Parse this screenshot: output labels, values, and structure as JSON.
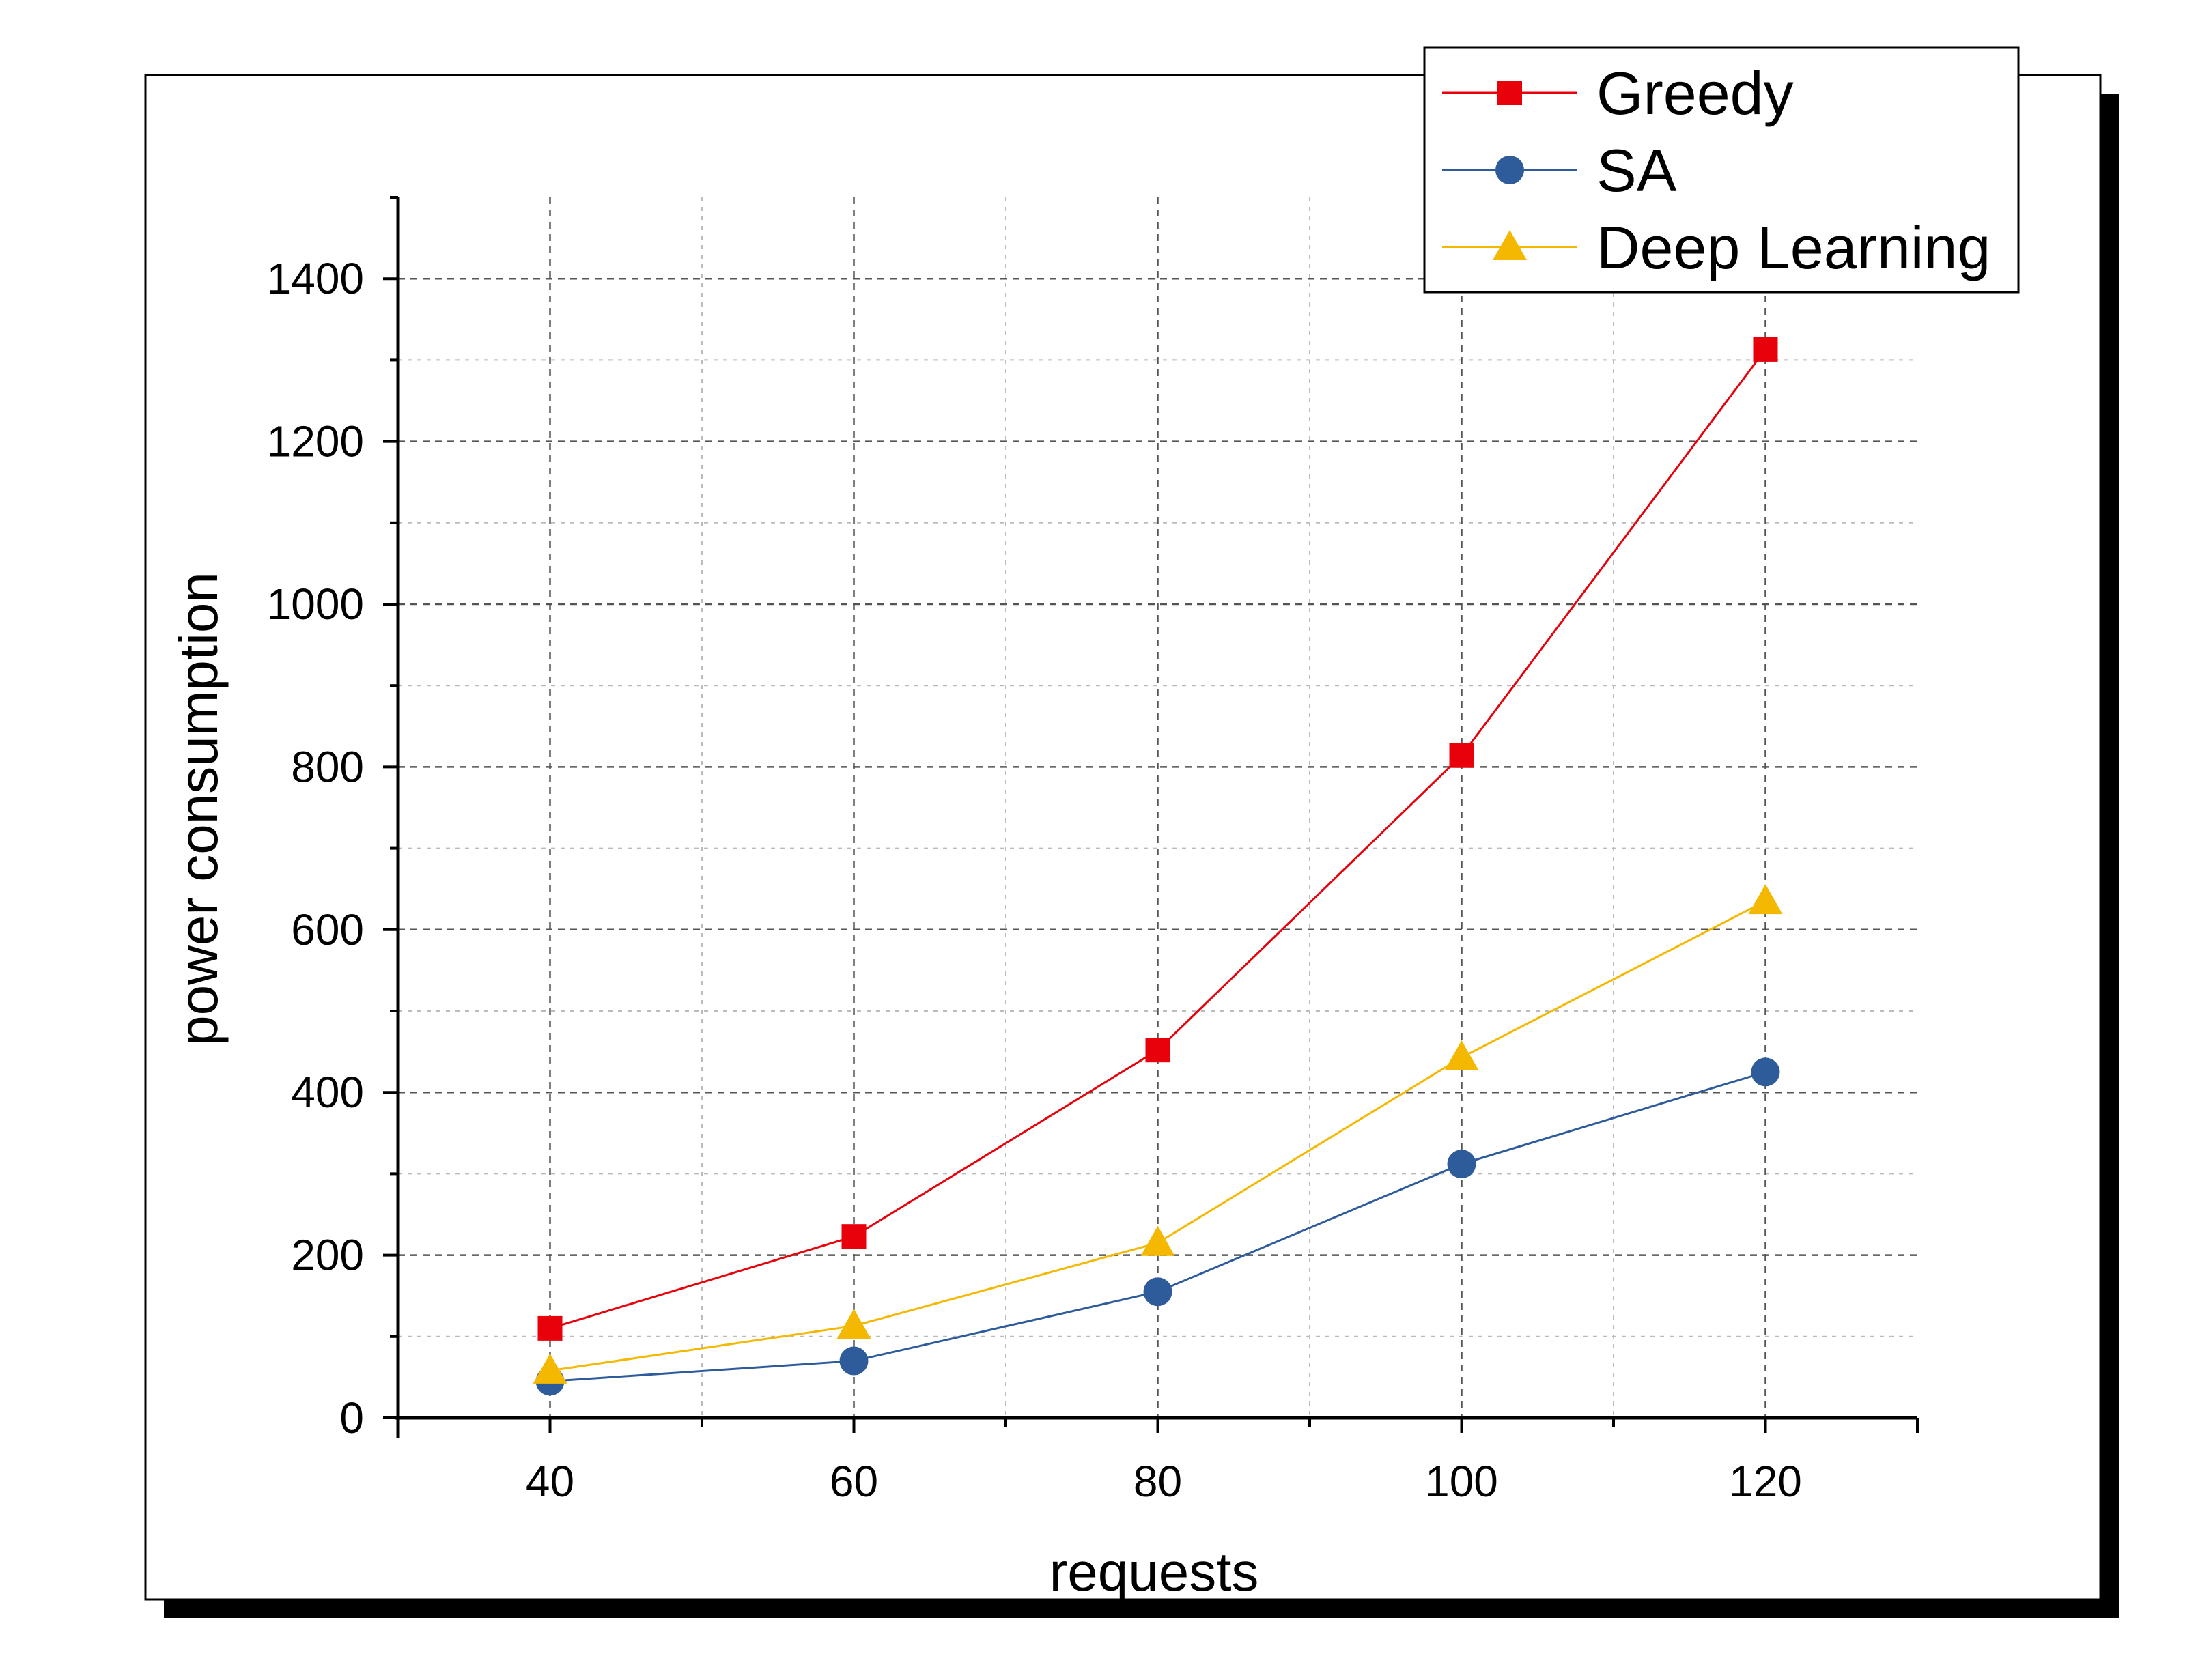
{
  "chart_data": {
    "type": "line",
    "xlabel": "requests",
    "ylabel": "power consumption",
    "x": [
      40,
      60,
      80,
      100,
      120
    ],
    "xlim": [
      30,
      130
    ],
    "ylim": [
      0,
      1500
    ],
    "xticks": [
      40,
      60,
      80,
      100,
      120
    ],
    "yticks": [
      0,
      200,
      400,
      600,
      800,
      1000,
      1200,
      1400
    ],
    "grid": true,
    "legend_position": "top-right",
    "series": [
      {
        "name": "Greedy",
        "values": [
          110,
          223,
          452,
          814,
          1313
        ],
        "color": "#e8000b",
        "marker": "square"
      },
      {
        "name": "SA",
        "values": [
          45,
          70,
          155,
          312,
          425
        ],
        "color": "#2e5c9a",
        "marker": "circle"
      },
      {
        "name": "Deep Learning",
        "values": [
          58,
          113,
          215,
          443,
          635
        ],
        "color": "#f5b800",
        "marker": "triangle"
      }
    ]
  }
}
